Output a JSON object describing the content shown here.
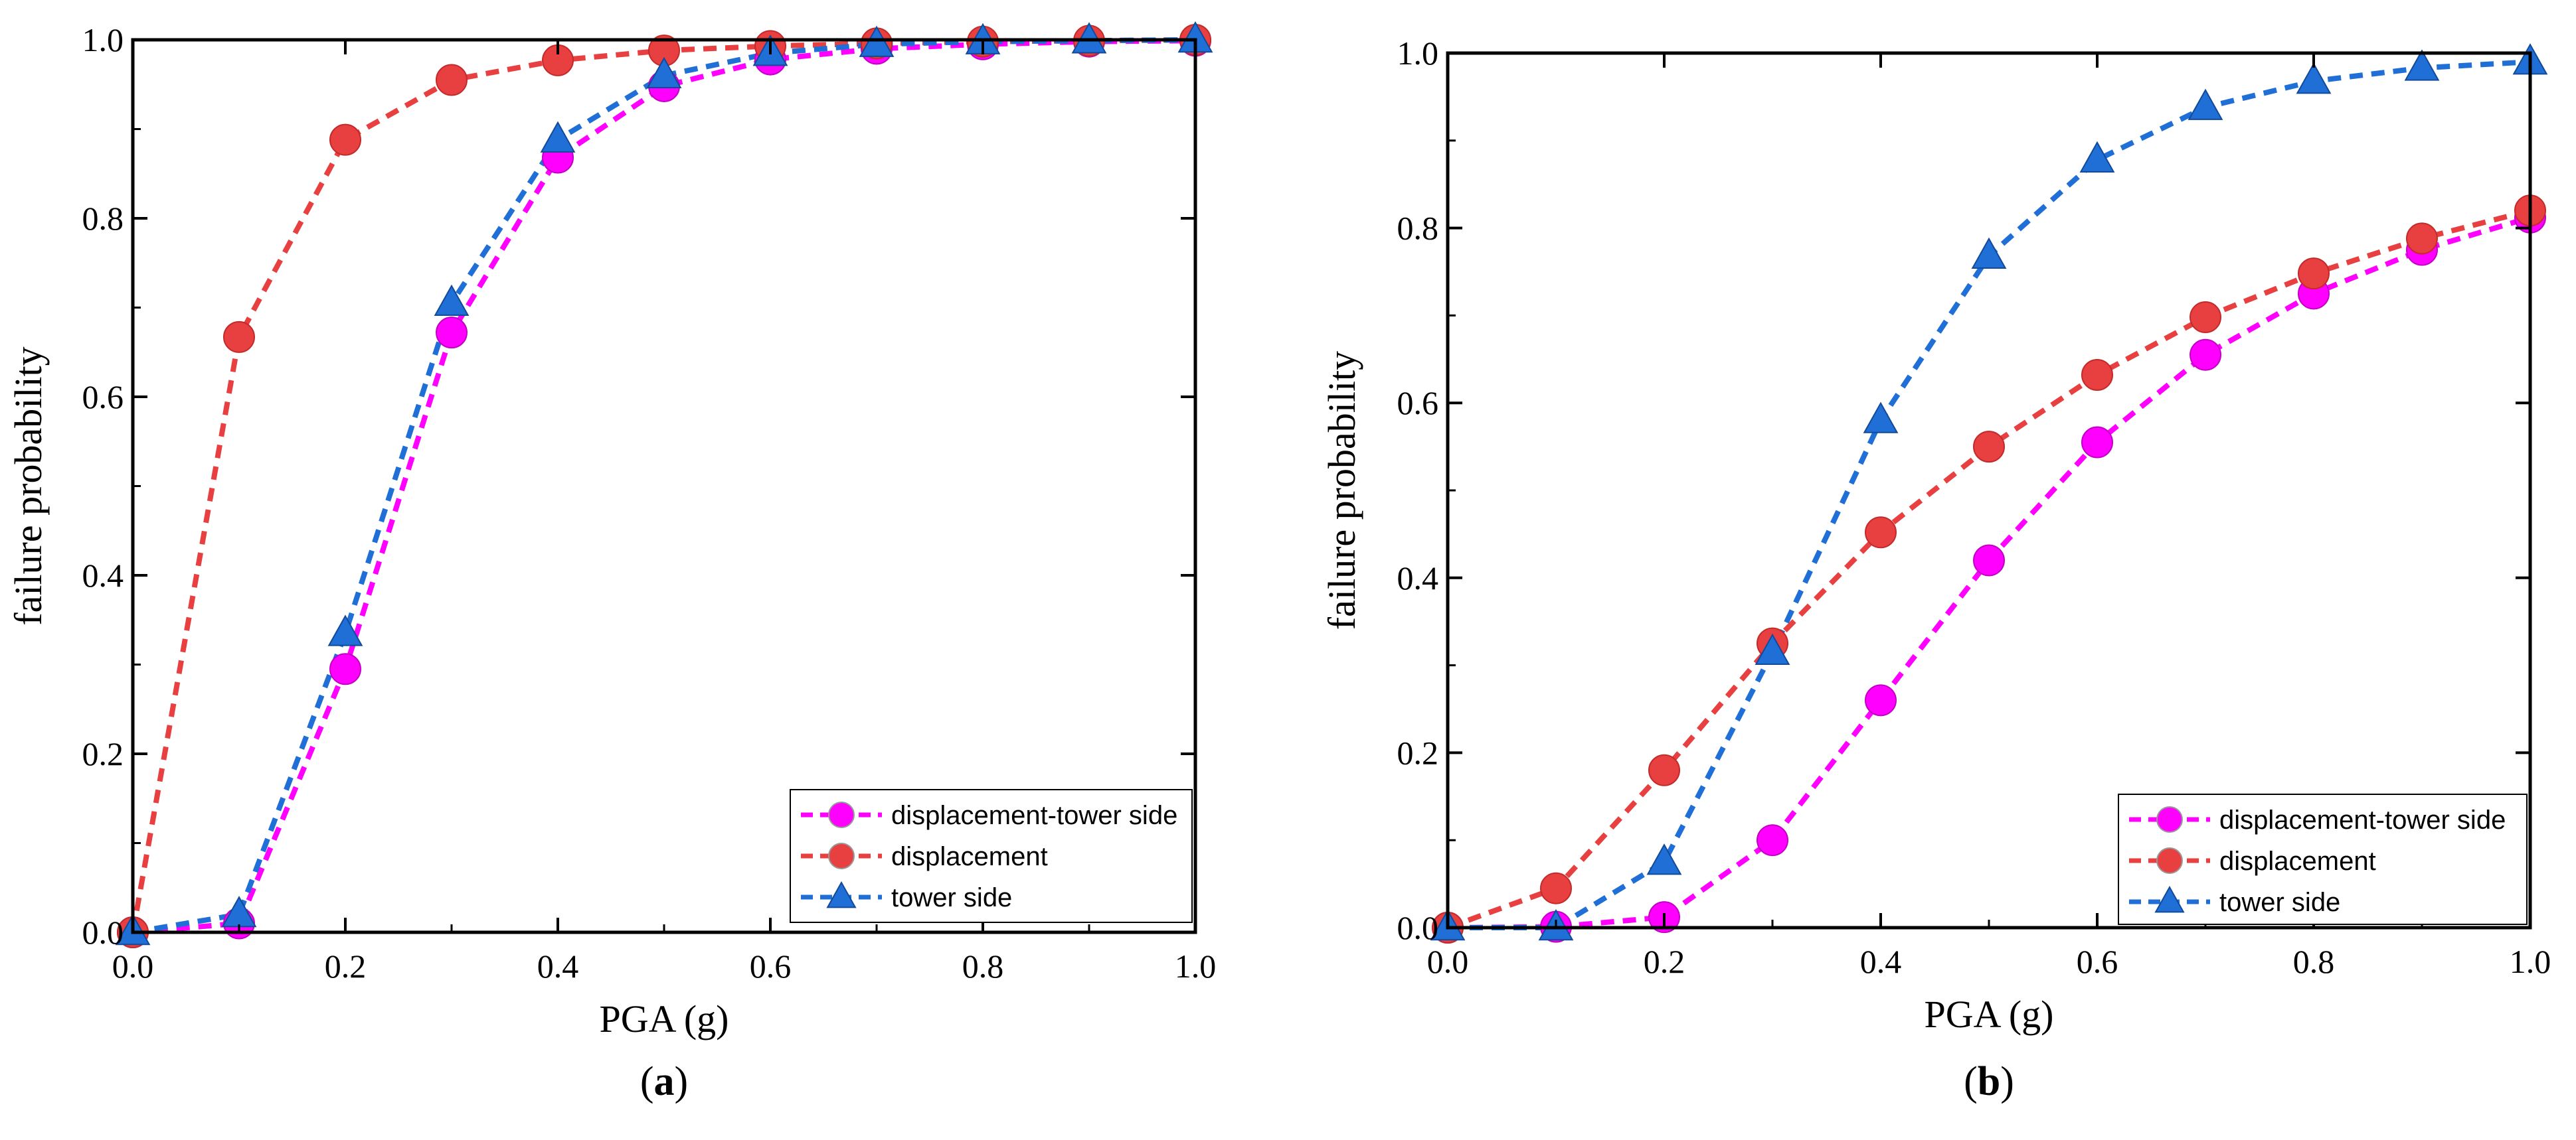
{
  "chart_data": [
    {
      "type": "line",
      "panel_label": "a",
      "title": "",
      "xlabel": "PGA (g)",
      "ylabel": "failure probability",
      "xlim": [
        0,
        1
      ],
      "ylim": [
        0,
        1
      ],
      "xticks": [
        "0.0",
        "0.2",
        "0.4",
        "0.6",
        "0.8",
        "1.0"
      ],
      "yticks": [
        "0.0",
        "0.2",
        "0.4",
        "0.6",
        "0.8",
        "1.0"
      ],
      "legend_position": "bottom-right",
      "series": [
        {
          "name": "displacement-tower side",
          "color": "#ff00ff",
          "marker": "circle",
          "x": [
            0.0,
            0.1,
            0.2,
            0.3,
            0.4,
            0.5,
            0.6,
            0.7,
            0.8,
            0.9,
            1.0
          ],
          "values": [
            0.0,
            0.01,
            0.295,
            0.672,
            0.868,
            0.948,
            0.978,
            0.99,
            0.995,
            0.998,
            0.999
          ]
        },
        {
          "name": "displacement",
          "color": "#e84040",
          "marker": "circle",
          "x": [
            0.0,
            0.1,
            0.2,
            0.3,
            0.4,
            0.5,
            0.6,
            0.7,
            0.8,
            0.9,
            1.0
          ],
          "values": [
            0.0,
            0.667,
            0.888,
            0.955,
            0.977,
            0.988,
            0.993,
            0.996,
            0.998,
            0.999,
            1.0
          ]
        },
        {
          "name": "tower side",
          "color": "#1f6fd6",
          "marker": "triangle",
          "x": [
            0.0,
            0.1,
            0.2,
            0.3,
            0.4,
            0.5,
            0.6,
            0.7,
            0.8,
            0.9,
            1.0
          ],
          "values": [
            0.0,
            0.02,
            0.335,
            0.705,
            0.888,
            0.96,
            0.985,
            0.995,
            0.998,
            0.999,
            1.0
          ]
        }
      ]
    },
    {
      "type": "line",
      "panel_label": "b",
      "title": "",
      "xlabel": "PGA (g)",
      "ylabel": "failure probability",
      "xlim": [
        0,
        1
      ],
      "ylim": [
        0,
        1
      ],
      "xticks": [
        "0.0",
        "0.2",
        "0.4",
        "0.6",
        "0.8",
        "1.0"
      ],
      "yticks": [
        "0.0",
        "0.2",
        "0.4",
        "0.6",
        "0.8",
        "1.0"
      ],
      "legend_position": "bottom-right",
      "series": [
        {
          "name": "displacement-tower side",
          "color": "#ff00ff",
          "marker": "circle",
          "x": [
            0.0,
            0.1,
            0.2,
            0.3,
            0.4,
            0.5,
            0.6,
            0.7,
            0.8,
            0.9,
            1.0
          ],
          "values": [
            0.0,
            0.001,
            0.012,
            0.1,
            0.26,
            0.42,
            0.555,
            0.655,
            0.725,
            0.775,
            0.812
          ]
        },
        {
          "name": "displacement",
          "color": "#e84040",
          "marker": "circle",
          "x": [
            0.0,
            0.1,
            0.2,
            0.3,
            0.4,
            0.5,
            0.6,
            0.7,
            0.8,
            0.9,
            1.0
          ],
          "values": [
            0.0,
            0.045,
            0.18,
            0.325,
            0.452,
            0.55,
            0.632,
            0.698,
            0.748,
            0.788,
            0.82
          ]
        },
        {
          "name": "tower side",
          "color": "#1f6fd6",
          "marker": "triangle",
          "x": [
            0.0,
            0.1,
            0.2,
            0.3,
            0.4,
            0.5,
            0.6,
            0.7,
            0.8,
            0.9,
            1.0
          ],
          "values": [
            0.0,
            0.0,
            0.075,
            0.315,
            0.58,
            0.768,
            0.878,
            0.938,
            0.968,
            0.983,
            0.99
          ]
        }
      ]
    }
  ]
}
